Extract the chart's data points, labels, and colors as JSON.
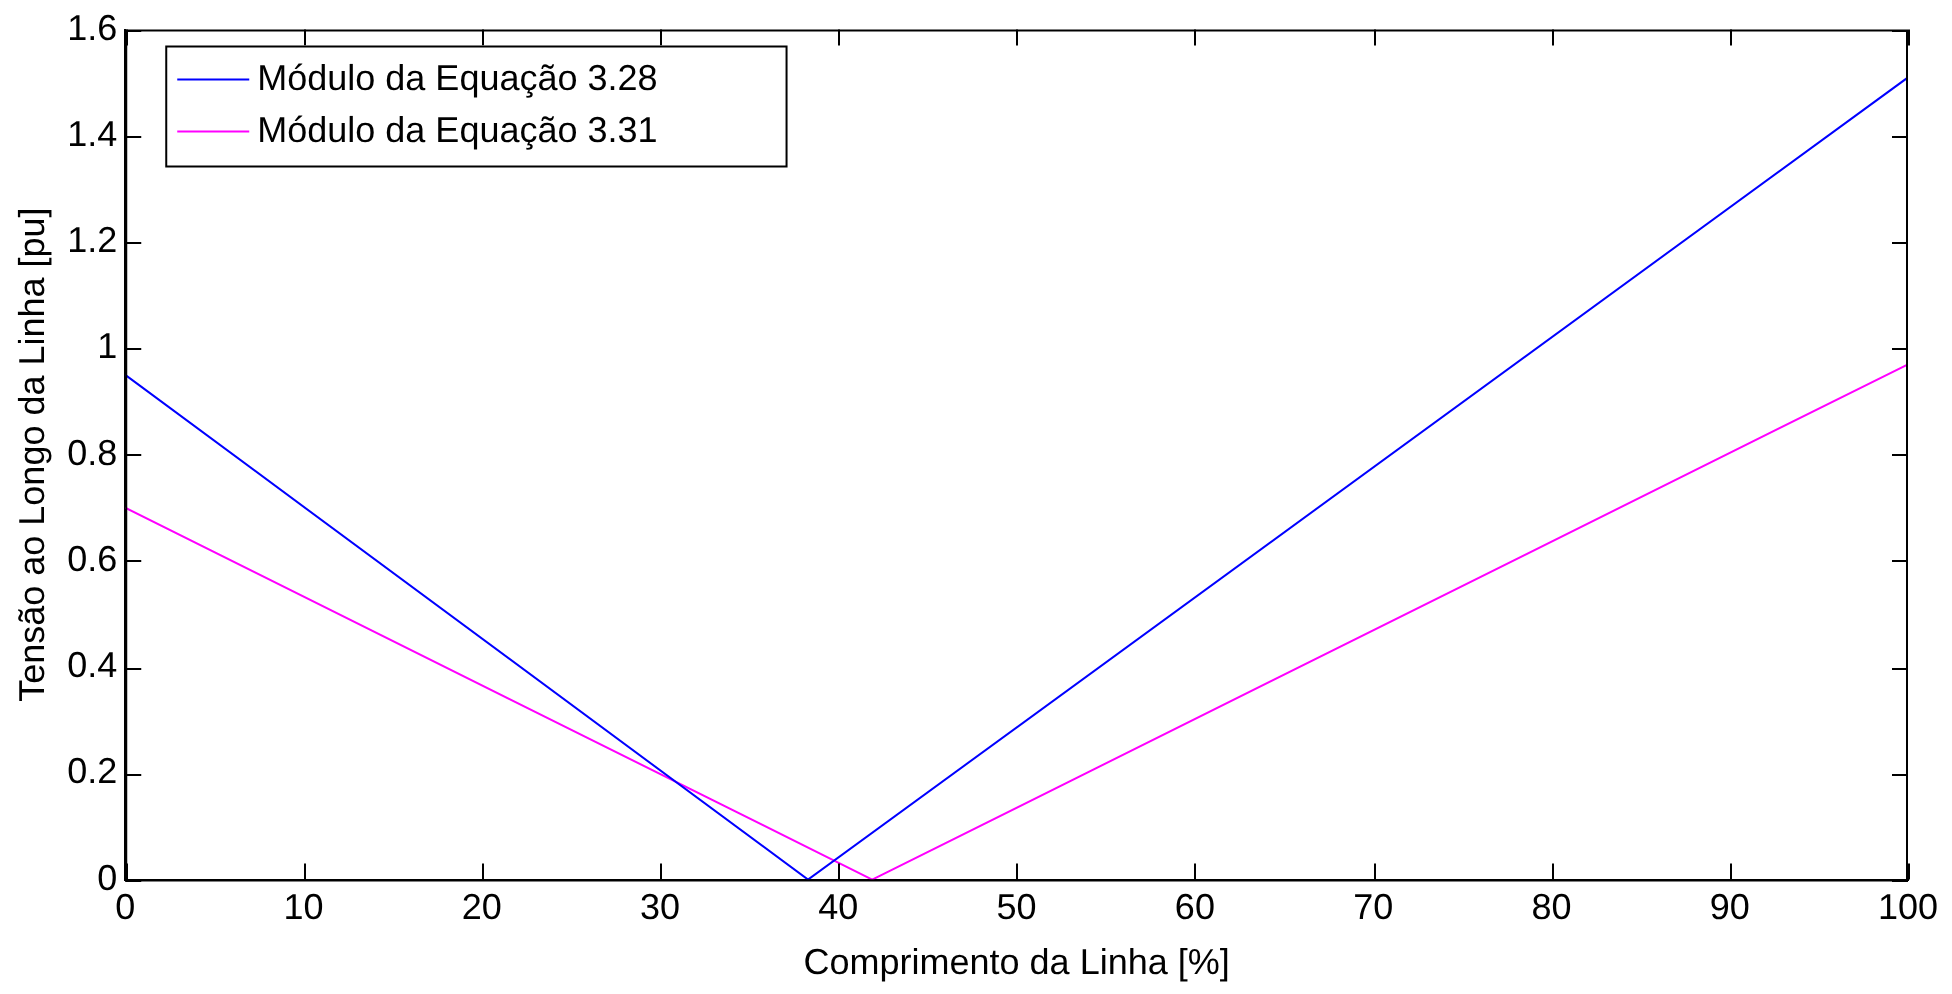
{
  "chart_data": {
    "type": "line",
    "xlabel": "Comprimento da Linha [%]",
    "ylabel": "Tensão ao Longo da Linha [pu]",
    "xlim": [
      0,
      100
    ],
    "xticks": [
      0,
      10,
      20,
      30,
      40,
      50,
      60,
      70,
      80,
      90,
      100
    ],
    "ylim": [
      0,
      1.6
    ],
    "yticks": [
      0,
      0.2,
      0.4,
      0.6,
      0.8,
      1,
      1.2,
      1.4,
      1.6
    ],
    "grid": false,
    "legend": "top left",
    "line_style": "solid",
    "marker": "none",
    "series": [
      {
        "name": "Módulo da Equação 3.28",
        "color": "#0000ff",
        "x": [
          0,
          38.3,
          100
        ],
        "values": [
          0.95,
          0,
          1.51
        ]
      },
      {
        "name": "Módulo da Equação 3.31",
        "color": "#ff00ff",
        "x": [
          0,
          41.9,
          100
        ],
        "values": [
          0.7,
          0,
          0.97
        ]
      }
    ]
  }
}
